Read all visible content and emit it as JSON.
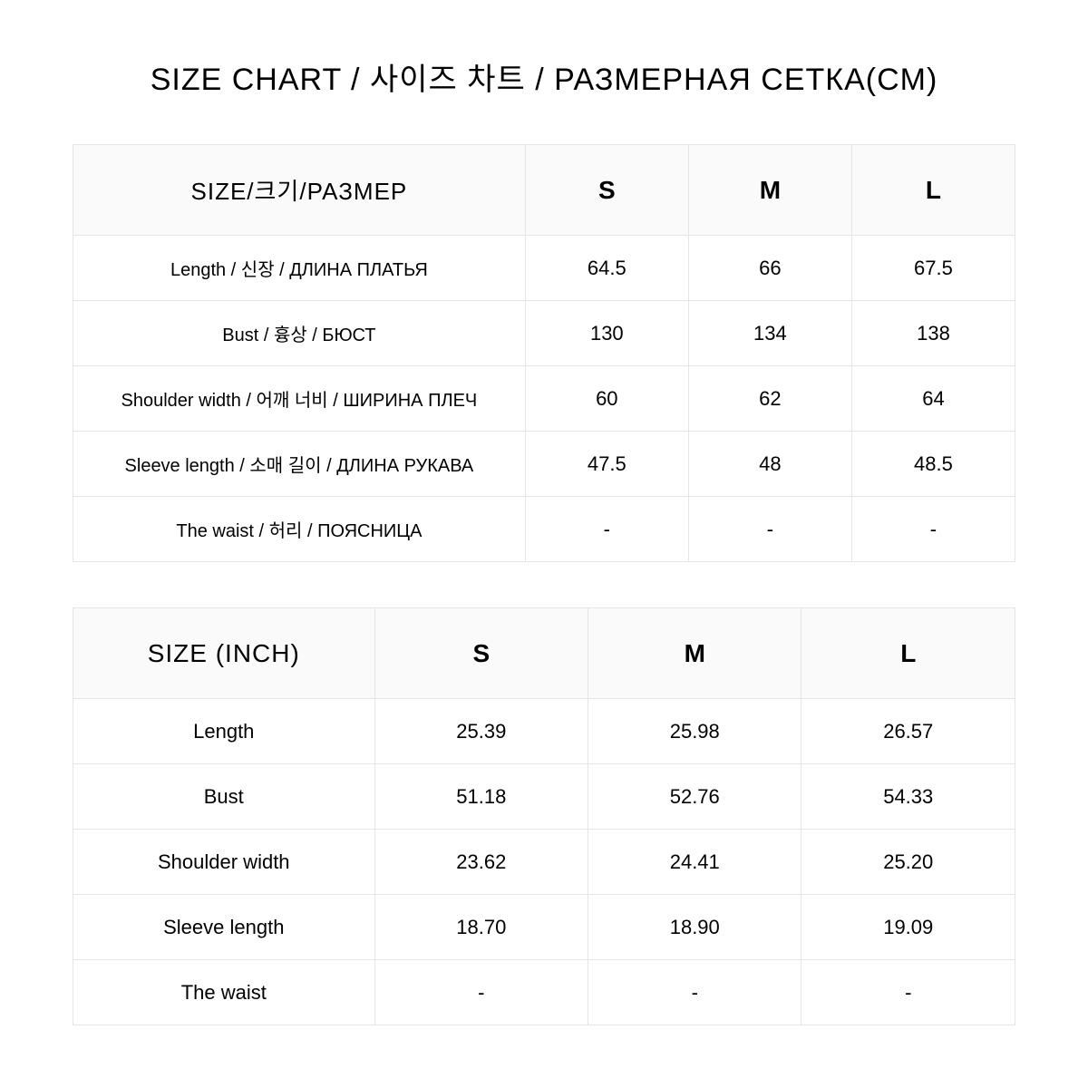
{
  "title": "SIZE CHART / 사이즈 차트 / РАЗМЕРНАЯ СЕТКА(CM)",
  "colors": {
    "border": "#e5e5e5",
    "header_bg": "#fafafa",
    "text": "#000000",
    "background": "#ffffff"
  },
  "typography": {
    "title_fontsize_pt": 26,
    "header_fontsize_pt": 21,
    "cell_fontsize_pt": 17,
    "rowlabel_fontsize_pt": 15
  },
  "table_cm": {
    "header_label": "SIZE/크기/РАЗМЕР",
    "sizes": [
      "S",
      "M",
      "L"
    ],
    "rows": [
      {
        "label": "Length  / 신장  /  ДЛИНА ПЛАТЬЯ",
        "values": [
          "64.5",
          "66",
          "67.5"
        ]
      },
      {
        "label": "Bust  / 흉상  /  БЮСТ",
        "values": [
          "130",
          "134",
          "138"
        ]
      },
      {
        "label": "Shoulder width  /  어깨 너비  /  ШИРИНА ПЛЕЧ",
        "values": [
          "60",
          "62",
          "64"
        ]
      },
      {
        "label": "Sleeve length / 소매 길이  /  ДЛИНА РУКАВА",
        "values": [
          "47.5",
          "48",
          "48.5"
        ]
      },
      {
        "label": "The waist  / 허리  /  ПОЯСНИЦА",
        "values": [
          "-",
          "-",
          "-"
        ]
      }
    ]
  },
  "table_inch": {
    "header_label": "SIZE (INCH)",
    "sizes": [
      "S",
      "M",
      "L"
    ],
    "rows": [
      {
        "label": "Length",
        "values": [
          "25.39",
          "25.98",
          "26.57"
        ]
      },
      {
        "label": "Bust",
        "values": [
          "51.18",
          "52.76",
          "54.33"
        ]
      },
      {
        "label": "Shoulder width",
        "values": [
          "23.62",
          "24.41",
          "25.20"
        ]
      },
      {
        "label": "Sleeve length",
        "values": [
          "18.70",
          "18.90",
          "19.09"
        ]
      },
      {
        "label": "The waist",
        "values": [
          "-",
          "-",
          "-"
        ]
      }
    ]
  }
}
